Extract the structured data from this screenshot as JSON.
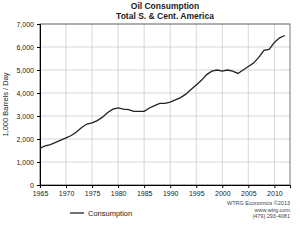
{
  "chart_data": {
    "type": "line",
    "title": "Oil Consumption",
    "subtitle": "Total S. & Cent. America",
    "y_label": "1,000 Barrels / Day",
    "x": [
      1965,
      1966,
      1967,
      1968,
      1969,
      1970,
      1971,
      1972,
      1973,
      1974,
      1975,
      1976,
      1977,
      1978,
      1979,
      1980,
      1981,
      1982,
      1983,
      1984,
      1985,
      1986,
      1987,
      1988,
      1989,
      1990,
      1991,
      1992,
      1993,
      1994,
      1995,
      1996,
      1997,
      1998,
      1999,
      2000,
      2001,
      2002,
      2003,
      2004,
      2005,
      2006,
      2007,
      2008,
      2009,
      2010,
      2011,
      2012
    ],
    "series": [
      {
        "name": "Consumption",
        "color": "#222222",
        "values": [
          1600,
          1700,
          1760,
          1850,
          1950,
          2050,
          2150,
          2300,
          2500,
          2650,
          2700,
          2800,
          2950,
          3150,
          3300,
          3350,
          3300,
          3280,
          3200,
          3200,
          3200,
          3350,
          3450,
          3550,
          3550,
          3600,
          3700,
          3800,
          3950,
          4150,
          4350,
          4550,
          4800,
          4950,
          5000,
          4950,
          5000,
          4950,
          4850,
          5000,
          5150,
          5300,
          5550,
          5850,
          5900,
          6200,
          6400,
          6500
        ]
      }
    ],
    "xlim": [
      1965,
      2013
    ],
    "xticks": [
      1965,
      1970,
      1975,
      1980,
      1985,
      1990,
      1995,
      2000,
      2005,
      2010
    ],
    "ylim": [
      0,
      7000
    ],
    "yticks": [
      0,
      {
        "value": 1000,
        "label": "1,000"
      },
      {
        "value": 2000,
        "label": "2,000"
      },
      {
        "value": 3000,
        "label": "3,000"
      },
      {
        "value": 4000,
        "label": "4,000"
      },
      {
        "value": 5000,
        "label": "5,000"
      },
      {
        "value": 6000,
        "label": "6,000"
      },
      {
        "value": 7000,
        "label": "7,000"
      }
    ],
    "grid": true,
    "legend": "bottom",
    "annotations": [
      "WTRG Economics ©2013",
      "www.wtrg.com",
      "(479) 293-4081"
    ]
  }
}
